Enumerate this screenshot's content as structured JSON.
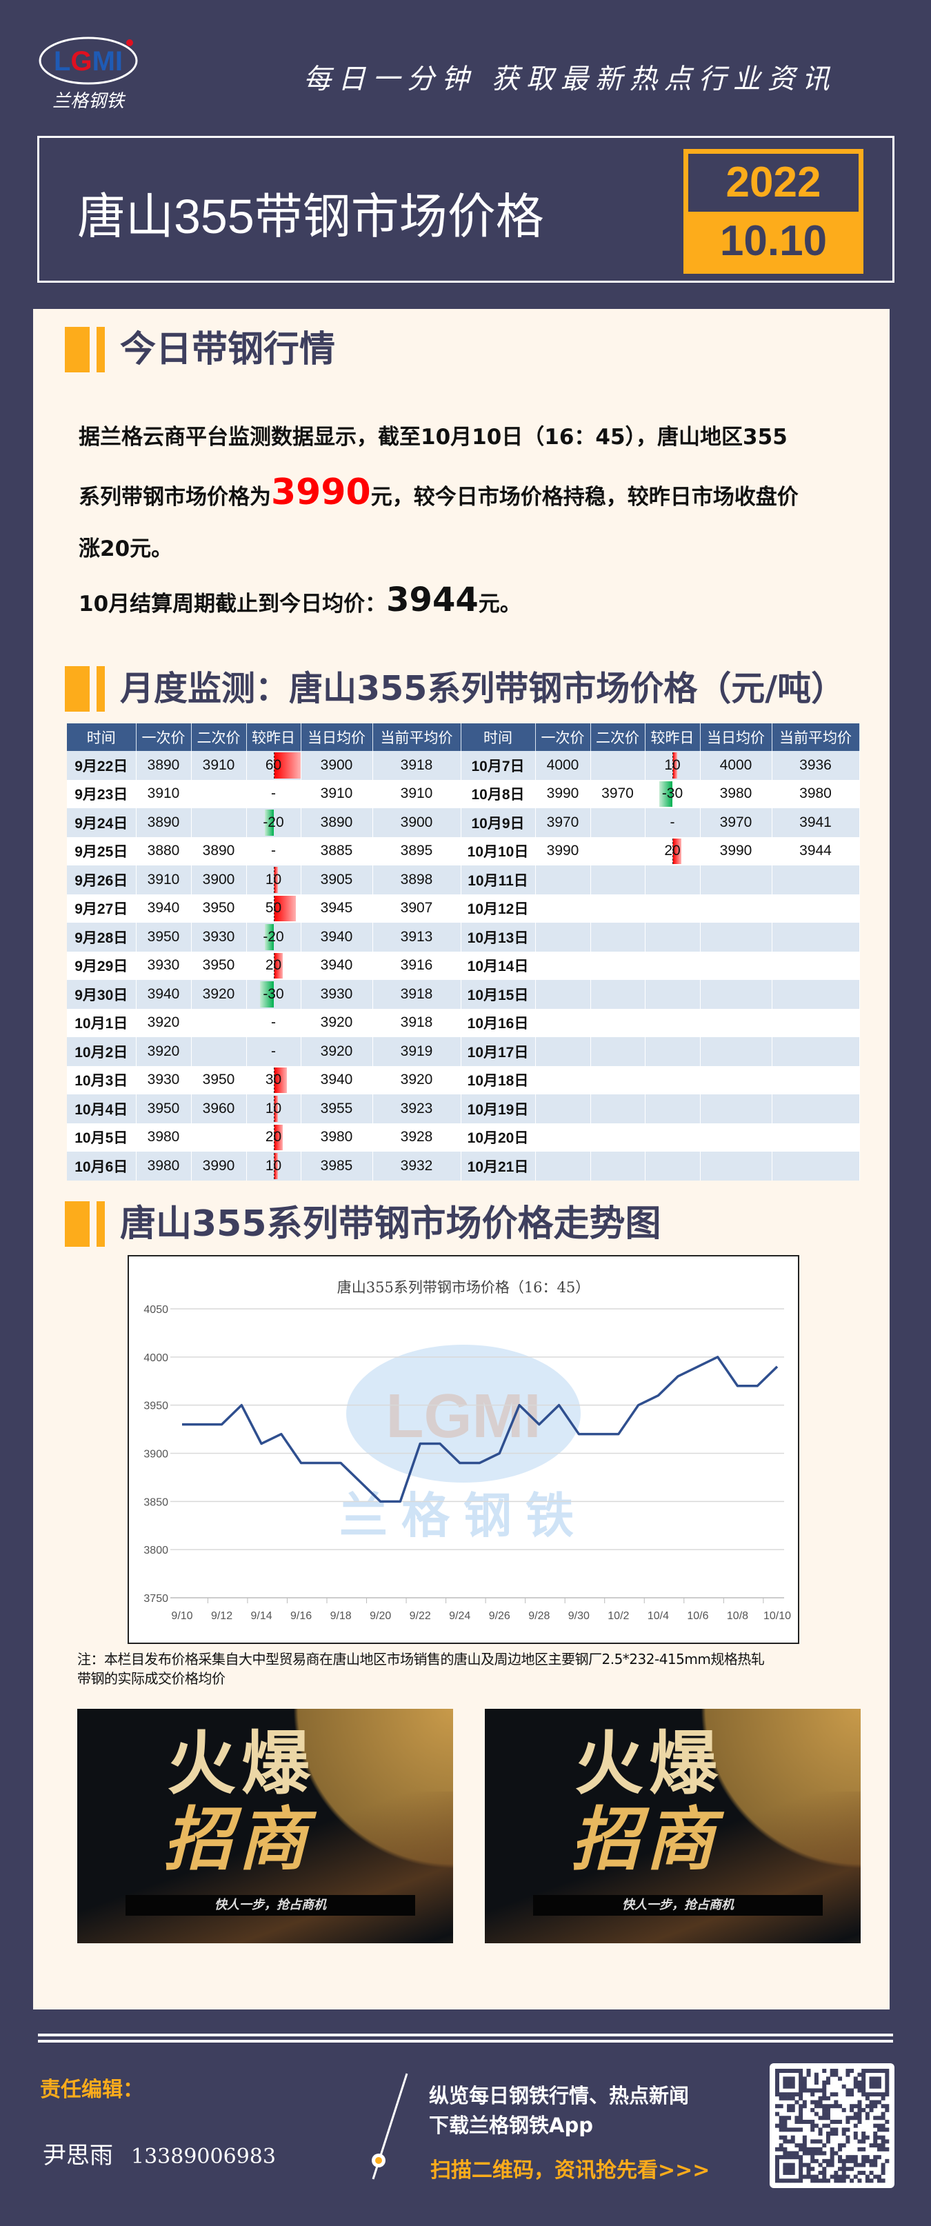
{
  "header": {
    "logo_text": "LGMI",
    "logo_cn": "兰格钢铁",
    "slogan": "每日一分钟  获取最新热点行业资讯",
    "title": "唐山355带钢市场价格",
    "year": "2022",
    "date": "10.10"
  },
  "colors": {
    "background": "#3e3f5e",
    "accent": "#fdac1b",
    "panel": "#fef6ec",
    "table_header": "#3b5b8c",
    "price_red": "#ff0000",
    "line": "#2f4f8f"
  },
  "section1": {
    "title": "今日带钢行情",
    "line1": "据兰格云商平台监测数据显示，截至10月10日（16：45），唐山地区355",
    "line2_pre": "系列带钢市场价格为",
    "price": "3990",
    "line2_post": "元，较今日市场价格持稳，较昨日市场收盘价",
    "line3": "涨20元。",
    "avg_pre": "10月结算周期截止到今日均价：",
    "avg_value": "3944",
    "avg_post": "元。"
  },
  "section2": {
    "title": "月度监测：唐山355系列带钢市场价格（元/吨）",
    "headers": [
      "时间",
      "一次价",
      "二次价",
      "较昨日",
      "当日均价",
      "当前平均价",
      "时间",
      "一次价",
      "二次价",
      "较昨日",
      "当日均价",
      "当前平均价"
    ],
    "rows": [
      [
        [
          "9月22日",
          "3890",
          "3910",
          "60",
          "3900",
          "3918"
        ],
        [
          "10月7日",
          "4000",
          "",
          "10",
          "4000",
          "3936"
        ]
      ],
      [
        [
          "9月23日",
          "3910",
          "",
          "-",
          "3910",
          "3910"
        ],
        [
          "10月8日",
          "3990",
          "3970",
          "-30",
          "3980",
          "3980"
        ]
      ],
      [
        [
          "9月24日",
          "3890",
          "",
          "-20",
          "3890",
          "3900"
        ],
        [
          "10月9日",
          "3970",
          "",
          "-",
          "3970",
          "3941"
        ]
      ],
      [
        [
          "9月25日",
          "3880",
          "3890",
          "-",
          "3885",
          "3895"
        ],
        [
          "10月10日",
          "3990",
          "",
          "20",
          "3990",
          "3944"
        ]
      ],
      [
        [
          "9月26日",
          "3910",
          "3900",
          "10",
          "3905",
          "3898"
        ],
        [
          "10月11日",
          "",
          "",
          "",
          "",
          ""
        ]
      ],
      [
        [
          "9月27日",
          "3940",
          "3950",
          "50",
          "3945",
          "3907"
        ],
        [
          "10月12日",
          "",
          "",
          "",
          "",
          ""
        ]
      ],
      [
        [
          "9月28日",
          "3950",
          "3930",
          "-20",
          "3940",
          "3913"
        ],
        [
          "10月13日",
          "",
          "",
          "",
          "",
          ""
        ]
      ],
      [
        [
          "9月29日",
          "3930",
          "3950",
          "20",
          "3940",
          "3916"
        ],
        [
          "10月14日",
          "",
          "",
          "",
          "",
          ""
        ]
      ],
      [
        [
          "9月30日",
          "3940",
          "3920",
          "-30",
          "3930",
          "3918"
        ],
        [
          "10月15日",
          "",
          "",
          "",
          "",
          ""
        ]
      ],
      [
        [
          "10月1日",
          "3920",
          "",
          "-",
          "3920",
          "3918"
        ],
        [
          "10月16日",
          "",
          "",
          "",
          "",
          ""
        ]
      ],
      [
        [
          "10月2日",
          "3920",
          "",
          "-",
          "3920",
          "3919"
        ],
        [
          "10月17日",
          "",
          "",
          "",
          "",
          ""
        ]
      ],
      [
        [
          "10月3日",
          "3930",
          "3950",
          "30",
          "3940",
          "3920"
        ],
        [
          "10月18日",
          "",
          "",
          "",
          "",
          ""
        ]
      ],
      [
        [
          "10月4日",
          "3950",
          "3960",
          "10",
          "3955",
          "3923"
        ],
        [
          "10月19日",
          "",
          "",
          "",
          "",
          ""
        ]
      ],
      [
        [
          "10月5日",
          "3980",
          "",
          "20",
          "3980",
          "3928"
        ],
        [
          "10月20日",
          "",
          "",
          "",
          "",
          ""
        ]
      ],
      [
        [
          "10月6日",
          "3980",
          "3990",
          "10",
          "3985",
          "3932"
        ],
        [
          "10月21日",
          "",
          "",
          "",
          "",
          ""
        ]
      ]
    ]
  },
  "section3": {
    "title": "唐山355系列带钢市场价格走势图"
  },
  "chart_data": {
    "type": "line",
    "title": "唐山355系列带钢市场价格（16：45）",
    "x": [
      "9/10",
      "9/11",
      "9/12",
      "9/13",
      "9/14",
      "9/15",
      "9/16",
      "9/17",
      "9/18",
      "9/19",
      "9/20",
      "9/21",
      "9/22",
      "9/23",
      "9/24",
      "9/25",
      "9/26",
      "9/27",
      "9/28",
      "9/29",
      "9/30",
      "10/1",
      "10/2",
      "10/3",
      "10/4",
      "10/5",
      "10/6",
      "10/7",
      "10/8",
      "10/9",
      "10/10"
    ],
    "values": [
      3930,
      3930,
      3930,
      3950,
      3910,
      3920,
      3890,
      3890,
      3890,
      3870,
      3850,
      3850,
      3910,
      3910,
      3890,
      3890,
      3900,
      3950,
      3930,
      3950,
      3920,
      3920,
      3920,
      3950,
      3960,
      3980,
      3990,
      4000,
      3970,
      3970,
      3990
    ],
    "x_tick_labels": [
      "9/10",
      "9/12",
      "9/14",
      "9/16",
      "9/18",
      "9/20",
      "9/22",
      "9/24",
      "9/26",
      "9/28",
      "9/30",
      "10/2",
      "10/4",
      "10/6",
      "10/8",
      "10/10"
    ],
    "y_ticks": [
      3750,
      3800,
      3850,
      3900,
      3950,
      4000,
      4050
    ],
    "ylim": [
      3750,
      4050
    ],
    "grid": true,
    "watermark": "LGMI 兰格钢铁"
  },
  "note": {
    "line1": "注：本栏目发布价格采集自大中型贸易商在唐山地区市场销售的唐山及周边地区主要钢厂2.5*232-415mm规格热轧",
    "line2": "带钢的实际成交价格均价"
  },
  "ads": [
    {
      "word1": "火爆",
      "word2": "招商",
      "slogan": "快人一步，抢占商机"
    },
    {
      "word1": "火爆",
      "word2": "招商",
      "slogan": "快人一步，抢占商机"
    }
  ],
  "footer": {
    "editor_label": "责任编辑：",
    "editor_name": "尹思雨",
    "editor_phone": "13389006983",
    "promo1": "纵览每日钢铁行情、热点新闻",
    "promo2": "下载兰格钢铁App",
    "scan": "扫描二维码，资讯抢先看>>>"
  }
}
